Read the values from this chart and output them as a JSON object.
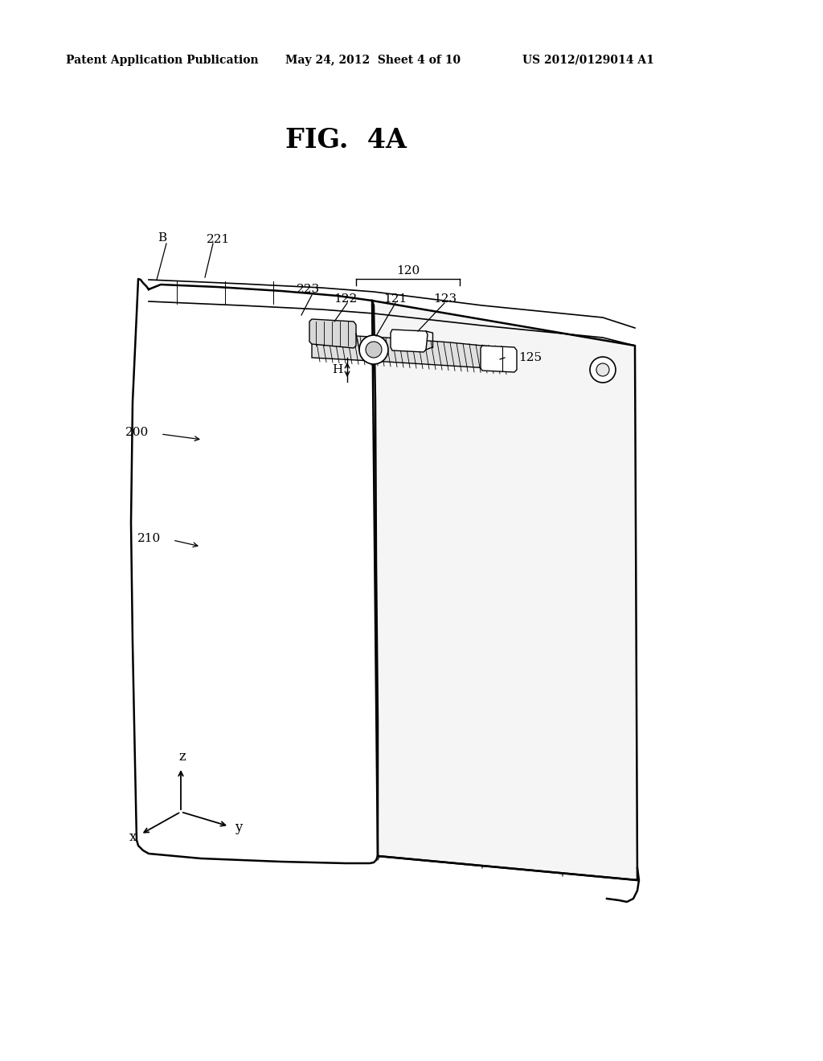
{
  "background_color": "#ffffff",
  "header_left": "Patent Application Publication",
  "header_mid": "May 24, 2012  Sheet 4 of 10",
  "header_right": "US 2012/0129014 A1",
  "fig_title": "FIG.  4A"
}
